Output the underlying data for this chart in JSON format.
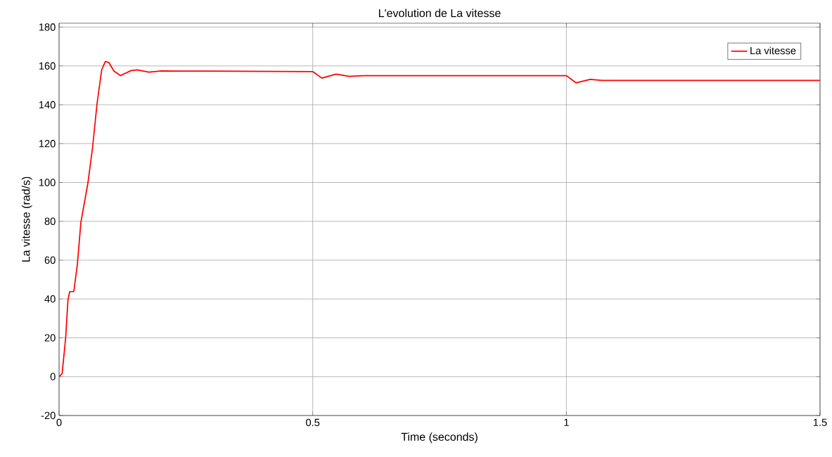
{
  "chart_data": {
    "type": "line",
    "title": "L'evolution de La vitesse",
    "xlabel": "Time (seconds)",
    "ylabel": "La vitesse (rad/s)",
    "xlim": [
      0,
      1.5
    ],
    "ylim": [
      -20,
      182
    ],
    "xticks": [
      0,
      0.5,
      1,
      1.5
    ],
    "yticks": [
      -20,
      0,
      20,
      40,
      60,
      80,
      100,
      120,
      140,
      160,
      180
    ],
    "grid": true,
    "legend": "top right",
    "marker": "none",
    "line_style": "solid",
    "series": [
      {
        "name": "La vitesse",
        "color": "#ff0000",
        "x": [
          0,
          0.006,
          0.013,
          0.0175,
          0.021,
          0.029,
          0.036,
          0.043,
          0.057,
          0.066,
          0.075,
          0.084,
          0.091,
          0.098,
          0.108,
          0.121,
          0.142,
          0.154,
          0.177,
          0.202,
          0.3,
          0.4,
          0.5,
          0.518,
          0.546,
          0.572,
          0.6,
          0.8,
          1.0,
          1.019,
          1.047,
          1.07,
          1.2,
          1.5
        ],
        "values": [
          0,
          1.6,
          20,
          39.6,
          43.8,
          43.8,
          57.7,
          79.5,
          100,
          118,
          141,
          158,
          162.2,
          161.8,
          157.4,
          155,
          157.6,
          158,
          156.8,
          157.4,
          157.3,
          157.2,
          157.1,
          153.7,
          155.8,
          154.6,
          155,
          155,
          155,
          151.3,
          153.1,
          152.5,
          152.5,
          152.5
        ]
      }
    ]
  }
}
